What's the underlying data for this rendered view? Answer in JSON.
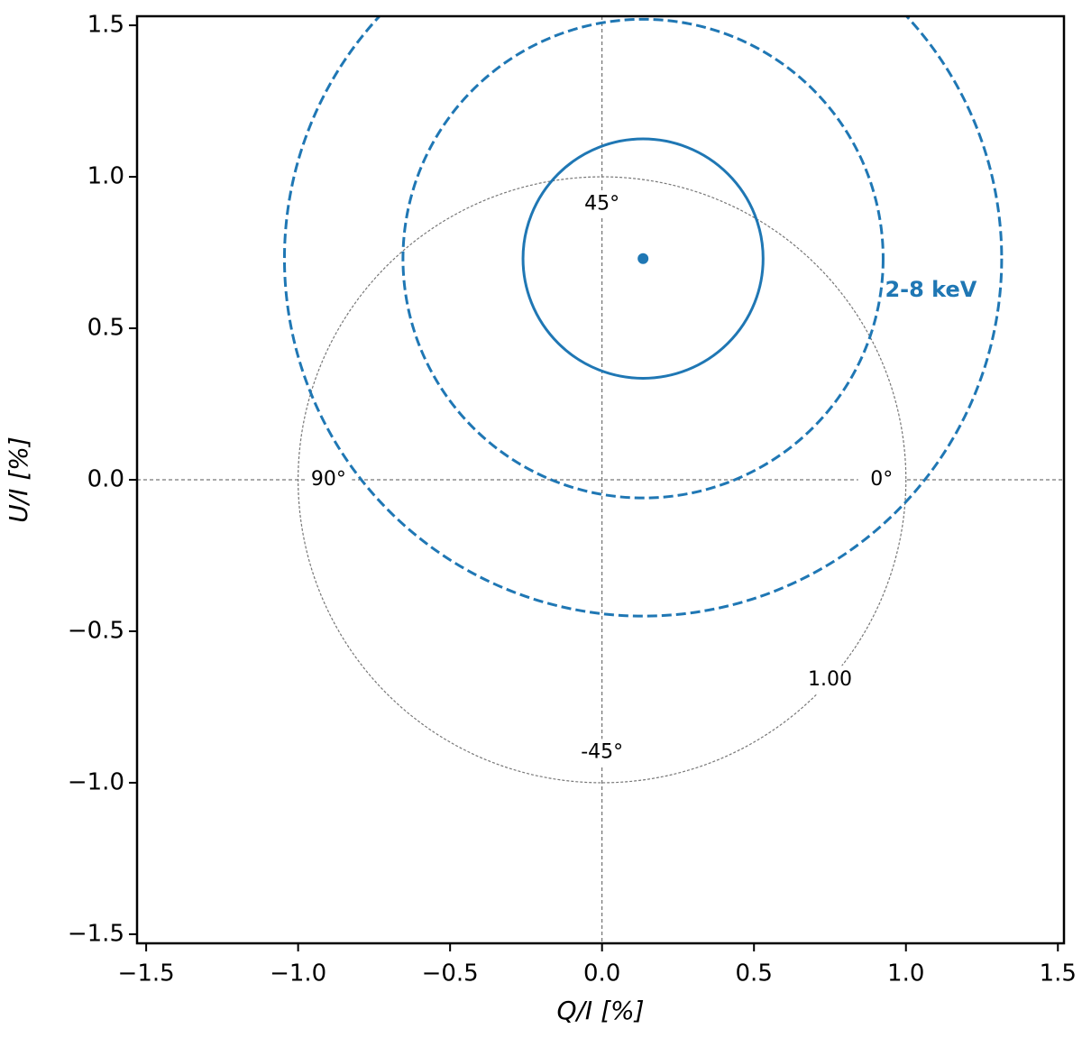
{
  "chart_data": {
    "type": "scatter",
    "x_label": "Q/I [%]",
    "y_label": "U/I [%]",
    "xlim": [
      -1.53,
      1.52
    ],
    "ylim": [
      -1.53,
      1.53
    ],
    "xticks": [
      {
        "value": -1.5,
        "label": "−1.5"
      },
      {
        "value": -1,
        "label": "−1.0"
      },
      {
        "value": -0.5,
        "label": "−0.5"
      },
      {
        "value": 0,
        "label": "0.0"
      },
      0.5,
      {
        "value": 1,
        "label": "1.0"
      },
      1.5
    ],
    "yticks": [
      {
        "value": -1.5,
        "label": "−1.5"
      },
      {
        "value": -1,
        "label": "−1.0"
      },
      {
        "value": -0.5,
        "label": "−0.5"
      },
      {
        "value": 0,
        "label": "0.0"
      },
      0.5,
      {
        "value": 1,
        "label": "1.0"
      },
      1.5
    ],
    "color": "#1f77b4",
    "series": [
      {
        "name": "2-8 keV",
        "color": "#1f77b4",
        "x": [
          0.135
        ],
        "values": [
          0.73
        ]
      }
    ],
    "circles": [
      {
        "x": 0.135,
        "y": 0.73,
        "r": 0.395,
        "dashed": false
      },
      {
        "x": 0.135,
        "y": 0.73,
        "r": 0.79,
        "dashed": true
      },
      {
        "x": 0.135,
        "y": 0.73,
        "r": 1.18,
        "dashed": true
      }
    ],
    "reference_circle": {
      "x": 0,
      "y": 0,
      "r": 1,
      "label": "1.00"
    },
    "annotations": [
      {
        "text": "45°",
        "x": 0,
        "y": 0.91
      },
      {
        "text": "-45°",
        "x": 0,
        "y": -0.9
      },
      {
        "text": "90°",
        "x": -0.9,
        "y": 0
      },
      {
        "text": "0°",
        "x": 0.92,
        "y": 0
      }
    ]
  }
}
